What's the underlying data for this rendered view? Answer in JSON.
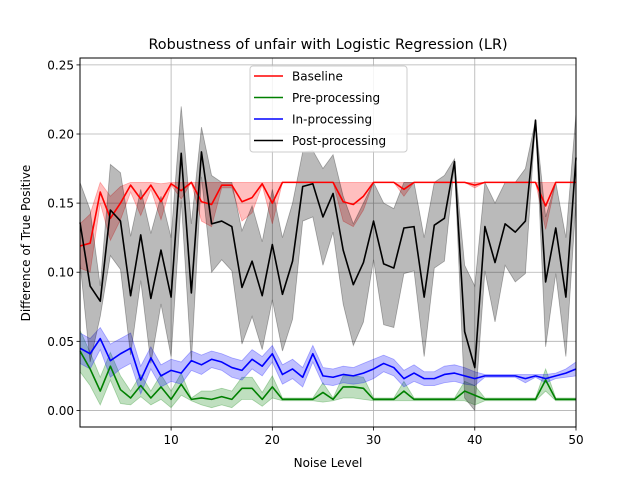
{
  "chart_data": {
    "type": "line",
    "title": "Robustness of unfair with Logistic Regression (LR)",
    "xlabel": "Noise Level",
    "ylabel": "Difference of True Positive",
    "xlim": [
      1,
      50
    ],
    "ylim": [
      -0.012,
      0.255
    ],
    "xticks": [
      10,
      20,
      30,
      40,
      50
    ],
    "yticks": [
      0.0,
      0.05,
      0.1,
      0.15,
      0.2,
      0.25
    ],
    "ytick_labels": [
      "0.00",
      "0.05",
      "0.10",
      "0.15",
      "0.20",
      "0.25"
    ],
    "grid": true,
    "legend_position": "top-center",
    "x": [
      1,
      2,
      3,
      4,
      5,
      6,
      7,
      8,
      9,
      10,
      11,
      12,
      13,
      14,
      15,
      16,
      17,
      18,
      19,
      20,
      21,
      22,
      23,
      24,
      25,
      26,
      27,
      28,
      29,
      30,
      31,
      32,
      33,
      34,
      35,
      36,
      37,
      38,
      39,
      40,
      41,
      42,
      43,
      44,
      45,
      46,
      47,
      48,
      49,
      50
    ],
    "series": [
      {
        "name": "Baseline",
        "color": "#ff0000",
        "band_opacity": 0.25,
        "values": [
          0.119,
          0.121,
          0.158,
          0.139,
          0.15,
          0.163,
          0.153,
          0.163,
          0.151,
          0.164,
          0.159,
          0.165,
          0.151,
          0.149,
          0.163,
          0.163,
          0.151,
          0.154,
          0.164,
          0.15,
          0.165,
          0.165,
          0.165,
          0.165,
          0.165,
          0.165,
          0.151,
          0.149,
          0.155,
          0.165,
          0.165,
          0.165,
          0.16,
          0.165,
          0.165,
          0.165,
          0.165,
          0.165,
          0.165,
          0.163,
          0.165,
          0.165,
          0.165,
          0.165,
          0.165,
          0.165,
          0.148,
          0.165,
          0.165,
          0.165
        ],
        "upper": [
          0.135,
          0.142,
          0.165,
          0.155,
          0.162,
          0.165,
          0.165,
          0.165,
          0.164,
          0.165,
          0.165,
          0.165,
          0.165,
          0.165,
          0.165,
          0.165,
          0.165,
          0.165,
          0.165,
          0.165,
          0.165,
          0.165,
          0.165,
          0.165,
          0.165,
          0.165,
          0.165,
          0.165,
          0.165,
          0.165,
          0.165,
          0.165,
          0.165,
          0.165,
          0.165,
          0.165,
          0.165,
          0.165,
          0.165,
          0.165,
          0.165,
          0.165,
          0.165,
          0.165,
          0.165,
          0.165,
          0.165,
          0.165,
          0.165,
          0.165
        ],
        "lower": [
          0.103,
          0.1,
          0.15,
          0.123,
          0.138,
          0.158,
          0.141,
          0.16,
          0.138,
          0.163,
          0.153,
          0.165,
          0.137,
          0.133,
          0.161,
          0.161,
          0.137,
          0.143,
          0.163,
          0.135,
          0.165,
          0.165,
          0.165,
          0.165,
          0.165,
          0.165,
          0.137,
          0.133,
          0.145,
          0.165,
          0.165,
          0.165,
          0.155,
          0.165,
          0.165,
          0.165,
          0.165,
          0.165,
          0.165,
          0.161,
          0.165,
          0.165,
          0.165,
          0.165,
          0.165,
          0.165,
          0.131,
          0.165,
          0.165,
          0.165
        ]
      },
      {
        "name": "Pre-processing",
        "color": "#008000",
        "band_opacity": 0.25,
        "values": [
          0.043,
          0.03,
          0.014,
          0.032,
          0.015,
          0.009,
          0.018,
          0.009,
          0.017,
          0.008,
          0.019,
          0.008,
          0.009,
          0.008,
          0.01,
          0.008,
          0.016,
          0.016,
          0.008,
          0.017,
          0.008,
          0.008,
          0.008,
          0.008,
          0.013,
          0.008,
          0.017,
          0.017,
          0.016,
          0.008,
          0.008,
          0.008,
          0.014,
          0.008,
          0.008,
          0.008,
          0.008,
          0.008,
          0.014,
          0.011,
          0.008,
          0.008,
          0.008,
          0.008,
          0.008,
          0.008,
          0.022,
          0.008,
          0.008,
          0.008
        ],
        "upper": [
          0.058,
          0.042,
          0.024,
          0.042,
          0.025,
          0.014,
          0.026,
          0.014,
          0.026,
          0.014,
          0.027,
          0.009,
          0.014,
          0.014,
          0.016,
          0.014,
          0.024,
          0.024,
          0.013,
          0.025,
          0.009,
          0.009,
          0.009,
          0.009,
          0.02,
          0.009,
          0.025,
          0.025,
          0.024,
          0.009,
          0.009,
          0.009,
          0.021,
          0.009,
          0.009,
          0.009,
          0.009,
          0.009,
          0.021,
          0.018,
          0.009,
          0.009,
          0.009,
          0.009,
          0.009,
          0.009,
          0.03,
          0.009,
          0.009,
          0.009
        ],
        "lower": [
          0.028,
          0.018,
          0.004,
          0.022,
          0.005,
          0.004,
          0.01,
          0.004,
          0.008,
          0.002,
          0.011,
          0.007,
          0.004,
          0.002,
          0.004,
          0.002,
          0.008,
          0.008,
          0.003,
          0.009,
          0.007,
          0.007,
          0.007,
          0.007,
          0.006,
          0.007,
          0.009,
          0.009,
          0.008,
          0.007,
          0.007,
          0.007,
          0.007,
          0.007,
          0.007,
          0.007,
          0.007,
          0.007,
          0.007,
          0.004,
          0.007,
          0.007,
          0.007,
          0.007,
          0.007,
          0.007,
          0.014,
          0.007,
          0.007,
          0.007
        ]
      },
      {
        "name": "In-processing",
        "color": "#0000ff",
        "band_opacity": 0.25,
        "values": [
          0.045,
          0.041,
          0.052,
          0.036,
          0.041,
          0.045,
          0.022,
          0.038,
          0.025,
          0.029,
          0.027,
          0.036,
          0.033,
          0.037,
          0.035,
          0.031,
          0.029,
          0.037,
          0.032,
          0.041,
          0.026,
          0.03,
          0.024,
          0.041,
          0.025,
          0.024,
          0.026,
          0.025,
          0.027,
          0.03,
          0.034,
          0.031,
          0.023,
          0.027,
          0.023,
          0.023,
          0.026,
          0.027,
          0.025,
          0.023,
          0.025,
          0.025,
          0.025,
          0.025,
          0.023,
          0.025,
          0.023,
          0.025,
          0.027,
          0.03
        ],
        "upper": [
          0.056,
          0.052,
          0.06,
          0.048,
          0.052,
          0.056,
          0.032,
          0.046,
          0.033,
          0.037,
          0.035,
          0.043,
          0.04,
          0.043,
          0.041,
          0.038,
          0.036,
          0.044,
          0.039,
          0.047,
          0.033,
          0.037,
          0.031,
          0.047,
          0.031,
          0.03,
          0.032,
          0.031,
          0.034,
          0.037,
          0.04,
          0.037,
          0.029,
          0.033,
          0.028,
          0.028,
          0.032,
          0.033,
          0.031,
          0.028,
          0.026,
          0.026,
          0.026,
          0.026,
          0.026,
          0.026,
          0.026,
          0.027,
          0.03,
          0.035
        ],
        "lower": [
          0.034,
          0.03,
          0.044,
          0.024,
          0.03,
          0.034,
          0.012,
          0.03,
          0.017,
          0.021,
          0.019,
          0.029,
          0.026,
          0.031,
          0.029,
          0.024,
          0.022,
          0.03,
          0.025,
          0.035,
          0.019,
          0.023,
          0.017,
          0.035,
          0.019,
          0.018,
          0.02,
          0.019,
          0.02,
          0.023,
          0.028,
          0.025,
          0.017,
          0.021,
          0.018,
          0.018,
          0.02,
          0.021,
          0.019,
          0.018,
          0.024,
          0.024,
          0.024,
          0.024,
          0.02,
          0.024,
          0.02,
          0.023,
          0.024,
          0.025
        ]
      },
      {
        "name": "Post-processing",
        "color": "#000000",
        "band_opacity": 0.27,
        "values": [
          0.136,
          0.09,
          0.079,
          0.145,
          0.137,
          0.083,
          0.127,
          0.081,
          0.116,
          0.082,
          0.186,
          0.085,
          0.187,
          0.135,
          0.137,
          0.133,
          0.089,
          0.108,
          0.083,
          0.12,
          0.084,
          0.108,
          0.162,
          0.164,
          0.14,
          0.157,
          0.116,
          0.091,
          0.107,
          0.137,
          0.106,
          0.103,
          0.132,
          0.133,
          0.082,
          0.134,
          0.139,
          0.18,
          0.057,
          0.031,
          0.133,
          0.107,
          0.135,
          0.129,
          0.137,
          0.21,
          0.093,
          0.132,
          0.082,
          0.183
        ],
        "upper": [
          0.165,
          0.145,
          0.09,
          0.178,
          0.172,
          0.126,
          0.16,
          0.128,
          0.155,
          0.125,
          0.22,
          0.135,
          0.205,
          0.17,
          0.165,
          0.165,
          0.13,
          0.148,
          0.122,
          0.16,
          0.125,
          0.15,
          0.187,
          0.188,
          0.175,
          0.185,
          0.155,
          0.135,
          0.15,
          0.165,
          0.15,
          0.146,
          0.165,
          0.165,
          0.125,
          0.165,
          0.17,
          0.182,
          0.105,
          0.09,
          0.165,
          0.15,
          0.165,
          0.165,
          0.175,
          0.21,
          0.14,
          0.165,
          0.125,
          0.215
        ],
        "lower": [
          0.107,
          0.035,
          0.068,
          0.112,
          0.102,
          0.04,
          0.094,
          0.034,
          0.077,
          0.039,
          0.152,
          0.035,
          0.169,
          0.1,
          0.109,
          0.101,
          0.048,
          0.068,
          0.044,
          0.08,
          0.043,
          0.066,
          0.137,
          0.14,
          0.105,
          0.129,
          0.077,
          0.047,
          0.064,
          0.109,
          0.062,
          0.06,
          0.099,
          0.101,
          0.039,
          0.103,
          0.108,
          0.178,
          0.009,
          0.0,
          0.101,
          0.064,
          0.105,
          0.093,
          0.099,
          0.21,
          0.046,
          0.099,
          0.039,
          0.151
        ]
      }
    ]
  }
}
